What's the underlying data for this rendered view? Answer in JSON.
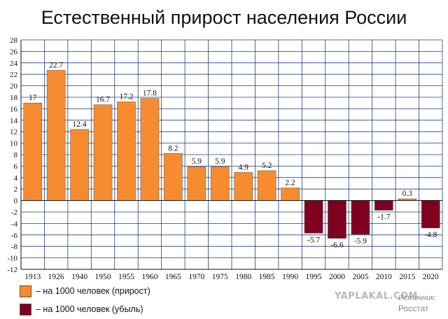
{
  "chart_data": {
    "type": "bar",
    "title": "Естественный прирост населения России",
    "categories": [
      "1913",
      "1926",
      "1940",
      "1950",
      "1955",
      "1960",
      "1965",
      "1970",
      "1975",
      "1980",
      "1985",
      "1990",
      "1995",
      "2000",
      "2005",
      "2010",
      "2015",
      "2020"
    ],
    "values": [
      17,
      22.7,
      12.4,
      16.7,
      17.2,
      17.8,
      8.2,
      5.9,
      5.9,
      4.9,
      5.2,
      2.2,
      -5.7,
      -6.6,
      -5.9,
      -1.7,
      0.3,
      -4.8
    ],
    "value_labels": [
      "17",
      "22.7",
      "12.4",
      "16.7",
      "17.2",
      "17.8",
      "8.2",
      "5.9",
      "5.9",
      "4.9",
      "5.2",
      "2.2",
      "-5.7",
      "-6.6",
      "-5.9",
      "-1.7",
      "0.3",
      "-4.8"
    ],
    "ylim": [
      -12,
      28
    ],
    "yticks": [
      -12,
      -10,
      -8,
      -6,
      -4,
      -2,
      0,
      2,
      4,
      6,
      8,
      10,
      12,
      14,
      16,
      18,
      20,
      22,
      24,
      26,
      28
    ],
    "grid": true,
    "xlabel": "",
    "ylabel": "",
    "legend": [
      {
        "label": "– на 1000 человек (прирост)",
        "color": "#f68b2f"
      },
      {
        "label": "– на 1000 человек (убыль)",
        "color": "#800020"
      }
    ]
  },
  "colors": {
    "positive": "#f68b2f",
    "negative": "#800020",
    "grid": "#1f3f7f",
    "axis": "#111111"
  },
  "watermark": "YAPLAKAL.COM",
  "source": {
    "label": "Источник:",
    "name": "Росстат"
  }
}
